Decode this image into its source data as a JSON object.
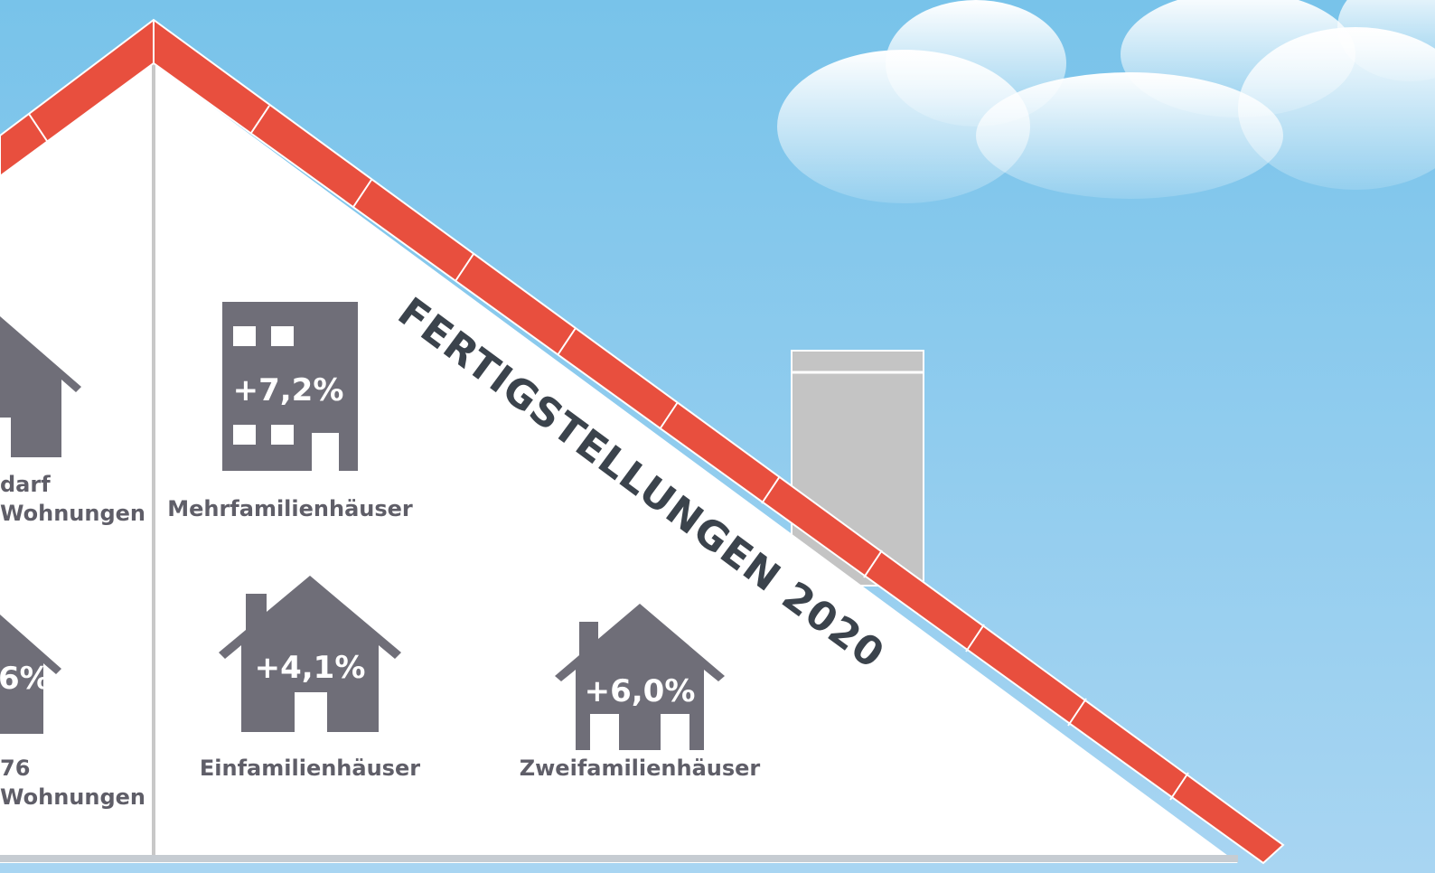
{
  "title": "FERTIGSTELLUNGEN 2020",
  "left_column": {
    "top_label_line1": "darf",
    "top_label_line2": "Wohnungen",
    "bottom_value": "6%",
    "bottom_label_line1": "76",
    "bottom_label_line2": "Wohnungen"
  },
  "items": [
    {
      "label": "Mehrfamilienhäuser",
      "value": "+7,2%"
    },
    {
      "label": "Einfamilienhäuser",
      "value": "+4,1%"
    },
    {
      "label": "Zweifamilienhäuser",
      "value": "+6,0%"
    }
  ]
}
